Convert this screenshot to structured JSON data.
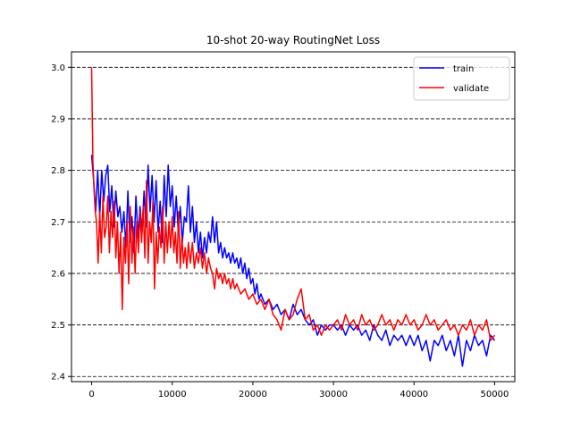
{
  "chart_data": {
    "type": "line",
    "title": "10-shot 20-way RoutingNet Loss",
    "xlabel": "",
    "ylabel": "",
    "xlim": [
      -2500,
      52500
    ],
    "ylim": [
      2.39,
      3.03
    ],
    "xticks": [
      0,
      10000,
      20000,
      30000,
      40000,
      50000
    ],
    "xtick_labels": [
      "0",
      "10000",
      "20000",
      "30000",
      "40000",
      "50000"
    ],
    "yticks": [
      2.4,
      2.5,
      2.6,
      2.7,
      2.8,
      2.9,
      3.0
    ],
    "ytick_labels": [
      "2.4",
      "2.5",
      "2.6",
      "2.7",
      "2.8",
      "2.9",
      "3.0"
    ],
    "grid": "horizontal dashed",
    "legend_position": "top-right",
    "series": [
      {
        "name": "train",
        "color": "#0000ff",
        "points": [
          [
            0,
            2.83
          ],
          [
            250,
            2.78
          ],
          [
            500,
            2.72
          ],
          [
            750,
            2.8
          ],
          [
            1000,
            2.71
          ],
          [
            1250,
            2.8
          ],
          [
            1500,
            2.74
          ],
          [
            1750,
            2.79
          ],
          [
            2000,
            2.81
          ],
          [
            2250,
            2.72
          ],
          [
            2500,
            2.77
          ],
          [
            2750,
            2.69
          ],
          [
            3000,
            2.76
          ],
          [
            3250,
            2.71
          ],
          [
            3500,
            2.73
          ],
          [
            3750,
            2.68
          ],
          [
            4000,
            2.72
          ],
          [
            4250,
            2.65
          ],
          [
            4500,
            2.76
          ],
          [
            4750,
            2.66
          ],
          [
            5000,
            2.71
          ],
          [
            5250,
            2.64
          ],
          [
            5500,
            2.75
          ],
          [
            5750,
            2.67
          ],
          [
            6000,
            2.73
          ],
          [
            6250,
            2.68
          ],
          [
            6500,
            2.76
          ],
          [
            6750,
            2.69
          ],
          [
            7000,
            2.81
          ],
          [
            7250,
            2.72
          ],
          [
            7500,
            2.79
          ],
          [
            7750,
            2.7
          ],
          [
            8000,
            2.78
          ],
          [
            8250,
            2.68
          ],
          [
            8500,
            2.74
          ],
          [
            8750,
            2.66
          ],
          [
            9000,
            2.79
          ],
          [
            9250,
            2.71
          ],
          [
            9500,
            2.81
          ],
          [
            9750,
            2.73
          ],
          [
            10000,
            2.77
          ],
          [
            10250,
            2.69
          ],
          [
            10500,
            2.75
          ],
          [
            10750,
            2.68
          ],
          [
            11000,
            2.73
          ],
          [
            11250,
            2.66
          ],
          [
            11500,
            2.71
          ],
          [
            11750,
            2.7
          ],
          [
            12000,
            2.77
          ],
          [
            12250,
            2.68
          ],
          [
            12500,
            2.73
          ],
          [
            12750,
            2.66
          ],
          [
            13000,
            2.7
          ],
          [
            13250,
            2.64
          ],
          [
            13500,
            2.68
          ],
          [
            13750,
            2.63
          ],
          [
            14000,
            2.67
          ],
          [
            14250,
            2.64
          ],
          [
            14500,
            2.68
          ],
          [
            14750,
            2.66
          ],
          [
            15000,
            2.71
          ],
          [
            15250,
            2.66
          ],
          [
            15500,
            2.7
          ],
          [
            15750,
            2.64
          ],
          [
            16000,
            2.66
          ],
          [
            16250,
            2.63
          ],
          [
            16500,
            2.65
          ],
          [
            16750,
            2.63
          ],
          [
            17000,
            2.64
          ],
          [
            17250,
            2.62
          ],
          [
            17500,
            2.64
          ],
          [
            17750,
            2.62
          ],
          [
            18000,
            2.63
          ],
          [
            18250,
            2.61
          ],
          [
            18500,
            2.63
          ],
          [
            18750,
            2.6
          ],
          [
            19000,
            2.62
          ],
          [
            19250,
            2.59
          ],
          [
            19500,
            2.61
          ],
          [
            19750,
            2.58
          ],
          [
            20000,
            2.59
          ],
          [
            20250,
            2.56
          ],
          [
            20500,
            2.58
          ],
          [
            20750,
            2.55
          ],
          [
            21000,
            2.56
          ],
          [
            21500,
            2.54
          ],
          [
            22000,
            2.55
          ],
          [
            22500,
            2.53
          ],
          [
            23000,
            2.54
          ],
          [
            23500,
            2.52
          ],
          [
            24000,
            2.53
          ],
          [
            24500,
            2.51
          ],
          [
            25000,
            2.54
          ],
          [
            25500,
            2.52
          ],
          [
            26000,
            2.53
          ],
          [
            26500,
            2.51
          ],
          [
            27000,
            2.5
          ],
          [
            27500,
            2.51
          ],
          [
            28000,
            2.48
          ],
          [
            28500,
            2.5
          ],
          [
            29000,
            2.49
          ],
          [
            29500,
            2.5
          ],
          [
            30000,
            2.5
          ],
          [
            30500,
            2.49
          ],
          [
            31000,
            2.5
          ],
          [
            31500,
            2.48
          ],
          [
            32000,
            2.5
          ],
          [
            32500,
            2.49
          ],
          [
            33000,
            2.5
          ],
          [
            33500,
            2.48
          ],
          [
            34000,
            2.49
          ],
          [
            34500,
            2.47
          ],
          [
            35000,
            2.5
          ],
          [
            35500,
            2.48
          ],
          [
            36000,
            2.47
          ],
          [
            36500,
            2.49
          ],
          [
            37000,
            2.46
          ],
          [
            37500,
            2.48
          ],
          [
            38000,
            2.47
          ],
          [
            38500,
            2.48
          ],
          [
            39000,
            2.46
          ],
          [
            39500,
            2.48
          ],
          [
            40000,
            2.46
          ],
          [
            40500,
            2.48
          ],
          [
            41000,
            2.45
          ],
          [
            41500,
            2.47
          ],
          [
            42000,
            2.43
          ],
          [
            42500,
            2.47
          ],
          [
            43000,
            2.46
          ],
          [
            43500,
            2.48
          ],
          [
            44000,
            2.45
          ],
          [
            44500,
            2.47
          ],
          [
            45000,
            2.44
          ],
          [
            45500,
            2.48
          ],
          [
            46000,
            2.42
          ],
          [
            46500,
            2.47
          ],
          [
            47000,
            2.45
          ],
          [
            47500,
            2.48
          ],
          [
            48000,
            2.46
          ],
          [
            48500,
            2.47
          ],
          [
            49000,
            2.44
          ],
          [
            49500,
            2.48
          ],
          [
            50000,
            2.47
          ]
        ]
      },
      {
        "name": "validate",
        "color": "#ff0000",
        "points": [
          [
            0,
            3.0
          ],
          [
            150,
            2.82
          ],
          [
            300,
            2.76
          ],
          [
            450,
            2.72
          ],
          [
            600,
            2.7
          ],
          [
            800,
            2.62
          ],
          [
            1000,
            2.72
          ],
          [
            1200,
            2.64
          ],
          [
            1400,
            2.75
          ],
          [
            1600,
            2.67
          ],
          [
            1800,
            2.69
          ],
          [
            2000,
            2.75
          ],
          [
            2200,
            2.64
          ],
          [
            2400,
            2.72
          ],
          [
            2600,
            2.67
          ],
          [
            2800,
            2.74
          ],
          [
            3000,
            2.63
          ],
          [
            3200,
            2.7
          ],
          [
            3400,
            2.6
          ],
          [
            3600,
            2.68
          ],
          [
            3800,
            2.53
          ],
          [
            4000,
            2.67
          ],
          [
            4200,
            2.62
          ],
          [
            4400,
            2.7
          ],
          [
            4600,
            2.58
          ],
          [
            4800,
            2.73
          ],
          [
            5000,
            2.62
          ],
          [
            5200,
            2.69
          ],
          [
            5400,
            2.6
          ],
          [
            5600,
            2.7
          ],
          [
            5800,
            2.64
          ],
          [
            6000,
            2.72
          ],
          [
            6200,
            2.66
          ],
          [
            6400,
            2.73
          ],
          [
            6600,
            2.63
          ],
          [
            6800,
            2.78
          ],
          [
            7000,
            2.62
          ],
          [
            7200,
            2.7
          ],
          [
            7400,
            2.66
          ],
          [
            7600,
            2.74
          ],
          [
            7800,
            2.57
          ],
          [
            8000,
            2.68
          ],
          [
            8200,
            2.62
          ],
          [
            8400,
            2.69
          ],
          [
            8600,
            2.65
          ],
          [
            8800,
            2.73
          ],
          [
            9000,
            2.62
          ],
          [
            9200,
            2.7
          ],
          [
            9400,
            2.64
          ],
          [
            9600,
            2.7
          ],
          [
            9800,
            2.65
          ],
          [
            10000,
            2.71
          ],
          [
            10200,
            2.64
          ],
          [
            10400,
            2.68
          ],
          [
            10600,
            2.62
          ],
          [
            10800,
            2.72
          ],
          [
            11000,
            2.61
          ],
          [
            11200,
            2.67
          ],
          [
            11400,
            2.62
          ],
          [
            11600,
            2.65
          ],
          [
            11800,
            2.61
          ],
          [
            12000,
            2.66
          ],
          [
            12250,
            2.62
          ],
          [
            12500,
            2.66
          ],
          [
            12750,
            2.61
          ],
          [
            13000,
            2.64
          ],
          [
            13250,
            2.62
          ],
          [
            13500,
            2.65
          ],
          [
            13750,
            2.61
          ],
          [
            14000,
            2.64
          ],
          [
            14250,
            2.6
          ],
          [
            14500,
            2.63
          ],
          [
            14750,
            2.61
          ],
          [
            15000,
            2.6
          ],
          [
            15250,
            2.57
          ],
          [
            15500,
            2.61
          ],
          [
            15750,
            2.59
          ],
          [
            16000,
            2.6
          ],
          [
            16250,
            2.58
          ],
          [
            16500,
            2.6
          ],
          [
            16750,
            2.58
          ],
          [
            17000,
            2.59
          ],
          [
            17250,
            2.57
          ],
          [
            17500,
            2.59
          ],
          [
            17750,
            2.57
          ],
          [
            18000,
            2.58
          ],
          [
            18500,
            2.56
          ],
          [
            19000,
            2.57
          ],
          [
            19500,
            2.55
          ],
          [
            20000,
            2.56
          ],
          [
            20500,
            2.54
          ],
          [
            21000,
            2.55
          ],
          [
            21500,
            2.53
          ],
          [
            22000,
            2.55
          ],
          [
            22500,
            2.52
          ],
          [
            23000,
            2.51
          ],
          [
            23500,
            2.49
          ],
          [
            24000,
            2.53
          ],
          [
            24500,
            2.51
          ],
          [
            25000,
            2.52
          ],
          [
            25500,
            2.55
          ],
          [
            26000,
            2.57
          ],
          [
            26500,
            2.51
          ],
          [
            27000,
            2.52
          ],
          [
            27500,
            2.49
          ],
          [
            28000,
            2.5
          ],
          [
            28500,
            2.48
          ],
          [
            29000,
            2.5
          ],
          [
            29500,
            2.49
          ],
          [
            30000,
            2.5
          ],
          [
            30500,
            2.51
          ],
          [
            31000,
            2.49
          ],
          [
            31500,
            2.52
          ],
          [
            32000,
            2.5
          ],
          [
            32500,
            2.51
          ],
          [
            33000,
            2.49
          ],
          [
            33500,
            2.52
          ],
          [
            34000,
            2.5
          ],
          [
            34500,
            2.51
          ],
          [
            35000,
            2.49
          ],
          [
            35500,
            2.5
          ],
          [
            36000,
            2.52
          ],
          [
            36500,
            2.5
          ],
          [
            37000,
            2.51
          ],
          [
            37500,
            2.49
          ],
          [
            38000,
            2.51
          ],
          [
            38500,
            2.5
          ],
          [
            39000,
            2.52
          ],
          [
            39500,
            2.5
          ],
          [
            40000,
            2.51
          ],
          [
            40500,
            2.49
          ],
          [
            41000,
            2.5
          ],
          [
            41500,
            2.52
          ],
          [
            42000,
            2.5
          ],
          [
            42500,
            2.51
          ],
          [
            43000,
            2.49
          ],
          [
            43500,
            2.5
          ],
          [
            44000,
            2.51
          ],
          [
            44500,
            2.49
          ],
          [
            45000,
            2.5
          ],
          [
            45500,
            2.48
          ],
          [
            46000,
            2.5
          ],
          [
            46500,
            2.49
          ],
          [
            47000,
            2.51
          ],
          [
            47500,
            2.48
          ],
          [
            48000,
            2.5
          ],
          [
            48500,
            2.49
          ],
          [
            49000,
            2.51
          ],
          [
            49500,
            2.47
          ],
          [
            50000,
            2.48
          ]
        ]
      }
    ]
  }
}
